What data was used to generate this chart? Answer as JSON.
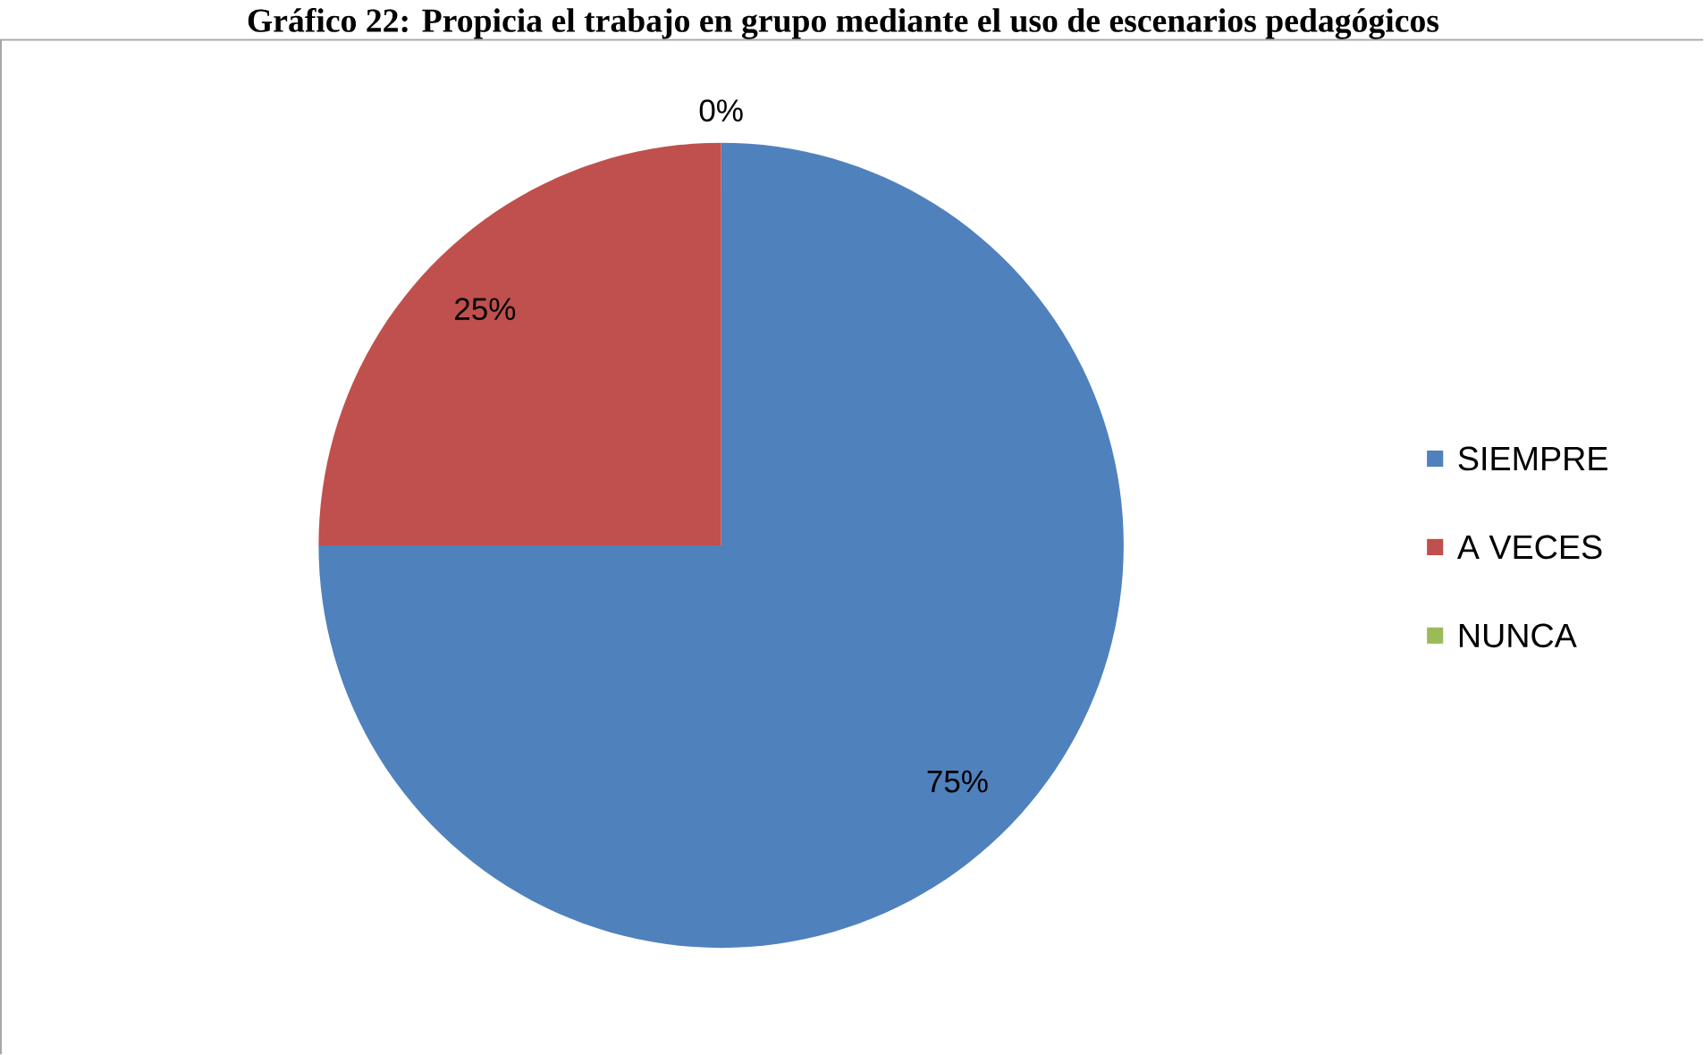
{
  "chart_data": {
    "type": "pie",
    "title": "Gráfico 22: Propicia el trabajo en grupo mediante el uso de escenarios pedagógicos",
    "categories": [
      "SIEMPRE",
      "A VECES",
      "NUNCA"
    ],
    "values": [
      75,
      25,
      0
    ],
    "colors": [
      "#4f81bd",
      "#c0504d",
      "#9bbb59"
    ],
    "value_labels": [
      "75%",
      "25%",
      "0%"
    ],
    "legend": "right"
  }
}
